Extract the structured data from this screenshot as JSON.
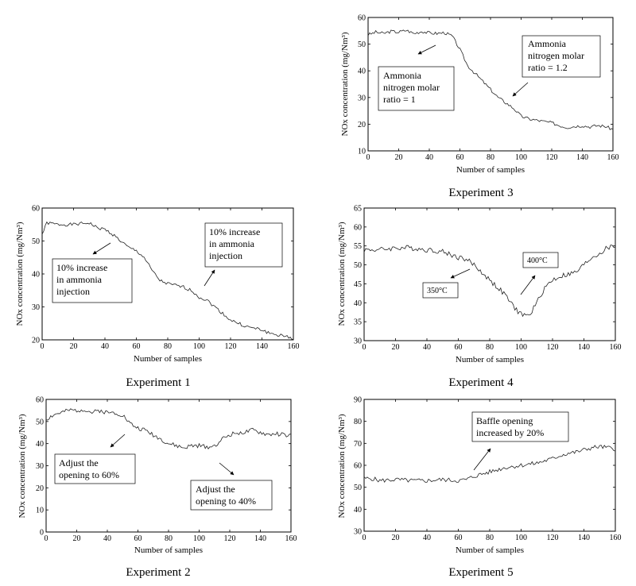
{
  "chart_data": [
    {
      "id": "exp3",
      "type": "line",
      "caption": "Experiment 3",
      "xlabel": "Number of samples",
      "ylabel": "NOx concentration (mg/Nm³)",
      "xlim": [
        0,
        160
      ],
      "ylim": [
        10,
        60
      ],
      "xticks": [
        0,
        20,
        40,
        60,
        80,
        100,
        120,
        140,
        160
      ],
      "yticks": [
        10,
        20,
        30,
        40,
        50,
        60
      ],
      "anchors": [
        [
          0,
          53.5
        ],
        [
          5,
          54.5
        ],
        [
          10,
          54
        ],
        [
          15,
          54.8
        ],
        [
          20,
          54.5
        ],
        [
          25,
          55.2
        ],
        [
          30,
          54
        ],
        [
          35,
          54.8
        ],
        [
          40,
          54.2
        ],
        [
          45,
          54
        ],
        [
          50,
          54.3
        ],
        [
          55,
          53
        ],
        [
          60,
          48
        ],
        [
          65,
          42
        ],
        [
          70,
          39
        ],
        [
          75,
          36
        ],
        [
          80,
          33
        ],
        [
          85,
          30
        ],
        [
          90,
          28
        ],
        [
          95,
          26
        ],
        [
          100,
          23
        ],
        [
          105,
          22
        ],
        [
          110,
          21.5
        ],
        [
          115,
          21
        ],
        [
          120,
          20.5
        ],
        [
          125,
          19.5
        ],
        [
          130,
          18.8
        ],
        [
          135,
          19.2
        ],
        [
          140,
          19.5
        ],
        [
          145,
          19
        ],
        [
          150,
          19.5
        ],
        [
          155,
          19.2
        ],
        [
          160,
          18
        ]
      ],
      "noise": 0.6,
      "seed": 3,
      "annotations": [
        {
          "lines": [
            "Ammonia",
            "nitrogen molar",
            "ratio = 1"
          ]
        },
        {
          "lines": [
            "Ammonia",
            "nitrogen molar",
            "ratio = 1.2"
          ]
        }
      ]
    },
    {
      "id": "exp1",
      "type": "line",
      "caption": "Experiment 1",
      "xlabel": "Number of samples",
      "ylabel": "NOx concentration (mg/Nm³)",
      "xlim": [
        0,
        160
      ],
      "ylim": [
        20,
        60
      ],
      "xticks": [
        0,
        20,
        40,
        60,
        80,
        100,
        120,
        140,
        160
      ],
      "yticks": [
        20,
        30,
        40,
        50,
        60
      ],
      "anchors": [
        [
          0,
          52
        ],
        [
          3,
          55.5
        ],
        [
          10,
          55
        ],
        [
          20,
          55
        ],
        [
          30,
          55.5
        ],
        [
          35,
          54
        ],
        [
          40,
          53.5
        ],
        [
          45,
          52
        ],
        [
          50,
          50
        ],
        [
          55,
          48
        ],
        [
          60,
          47
        ],
        [
          65,
          45
        ],
        [
          70,
          41
        ],
        [
          75,
          38
        ],
        [
          80,
          37
        ],
        [
          85,
          36.5
        ],
        [
          90,
          36
        ],
        [
          95,
          35
        ],
        [
          100,
          33
        ],
        [
          105,
          32
        ],
        [
          110,
          30
        ],
        [
          115,
          28
        ],
        [
          120,
          26
        ],
        [
          125,
          25
        ],
        [
          130,
          24
        ],
        [
          135,
          23.5
        ],
        [
          140,
          23
        ],
        [
          145,
          22
        ],
        [
          150,
          21.5
        ],
        [
          155,
          21
        ],
        [
          160,
          20.5
        ]
      ],
      "noise": 0.5,
      "seed": 1,
      "annotations": [
        {
          "lines": [
            "10% increase",
            "in ammonia",
            "injection"
          ]
        },
        {
          "lines": [
            "10% increase",
            "in ammonia",
            "injection"
          ]
        }
      ]
    },
    {
      "id": "exp4",
      "type": "line",
      "caption": "Experiment 4",
      "xlabel": "Number of samples",
      "ylabel": "NOx concentration (mg/Nm³)",
      "xlim": [
        0,
        160
      ],
      "ylim": [
        30,
        65
      ],
      "xticks": [
        0,
        20,
        40,
        60,
        80,
        100,
        120,
        140,
        160
      ],
      "yticks": [
        30,
        35,
        40,
        45,
        50,
        55,
        60,
        65
      ],
      "anchors": [
        [
          0,
          54
        ],
        [
          10,
          54
        ],
        [
          20,
          54.5
        ],
        [
          30,
          54.5
        ],
        [
          40,
          54
        ],
        [
          50,
          53.5
        ],
        [
          60,
          52
        ],
        [
          65,
          51.5
        ],
        [
          70,
          50
        ],
        [
          75,
          48
        ],
        [
          80,
          46
        ],
        [
          85,
          44
        ],
        [
          90,
          42
        ],
        [
          95,
          39
        ],
        [
          100,
          37
        ],
        [
          105,
          36.5
        ],
        [
          110,
          40
        ],
        [
          115,
          44
        ],
        [
          120,
          46
        ],
        [
          125,
          47
        ],
        [
          130,
          47.5
        ],
        [
          135,
          48
        ],
        [
          140,
          50
        ],
        [
          145,
          52
        ],
        [
          150,
          53
        ],
        [
          155,
          54.5
        ],
        [
          160,
          55
        ]
      ],
      "noise": 0.7,
      "seed": 4,
      "annotations": [
        {
          "lines": [
            "350°C"
          ]
        },
        {
          "lines": [
            "400°C"
          ]
        }
      ]
    },
    {
      "id": "exp2",
      "type": "line",
      "caption": "Experiment 2",
      "xlabel": "Number of samples",
      "ylabel": "NOx concentration (mg/Nm³)",
      "xlim": [
        0,
        160
      ],
      "ylim": [
        0,
        60
      ],
      "xticks": [
        0,
        20,
        40,
        60,
        80,
        100,
        120,
        140,
        160
      ],
      "yticks": [
        0,
        10,
        20,
        30,
        40,
        50,
        60
      ],
      "anchors": [
        [
          0,
          51
        ],
        [
          5,
          53
        ],
        [
          10,
          54
        ],
        [
          15,
          55
        ],
        [
          20,
          55
        ],
        [
          25,
          55.5
        ],
        [
          30,
          54
        ],
        [
          35,
          55
        ],
        [
          40,
          54
        ],
        [
          45,
          54
        ],
        [
          50,
          53
        ],
        [
          55,
          49
        ],
        [
          60,
          47
        ],
        [
          65,
          46
        ],
        [
          70,
          44
        ],
        [
          75,
          42
        ],
        [
          80,
          40
        ],
        [
          85,
          39
        ],
        [
          90,
          38
        ],
        [
          95,
          39
        ],
        [
          100,
          39
        ],
        [
          105,
          38.5
        ],
        [
          110,
          39
        ],
        [
          115,
          42
        ],
        [
          120,
          44
        ],
        [
          125,
          45
        ],
        [
          130,
          45
        ],
        [
          135,
          46
        ],
        [
          140,
          45
        ],
        [
          145,
          44
        ],
        [
          150,
          44.5
        ],
        [
          155,
          44
        ],
        [
          160,
          43.5
        ]
      ],
      "noise": 1.0,
      "seed": 2,
      "annotations": [
        {
          "lines": [
            "Adjust the",
            "opening to 60%"
          ]
        },
        {
          "lines": [
            "Adjust the",
            "opening to 40%"
          ]
        }
      ]
    },
    {
      "id": "exp5",
      "type": "line",
      "caption": "Experiment 5",
      "xlabel": "Number of samples",
      "ylabel": "NOx concentration (mg/Nm³)",
      "xlim": [
        0,
        160
      ],
      "ylim": [
        30,
        90
      ],
      "xticks": [
        0,
        20,
        40,
        60,
        80,
        100,
        120,
        140,
        160
      ],
      "yticks": [
        30,
        40,
        50,
        60,
        70,
        80,
        90
      ],
      "anchors": [
        [
          0,
          54
        ],
        [
          5,
          54
        ],
        [
          10,
          53
        ],
        [
          20,
          53.5
        ],
        [
          30,
          53
        ],
        [
          40,
          53
        ],
        [
          50,
          53.5
        ],
        [
          60,
          53
        ],
        [
          65,
          53.5
        ],
        [
          70,
          55
        ],
        [
          75,
          56
        ],
        [
          80,
          57
        ],
        [
          85,
          58
        ],
        [
          90,
          59
        ],
        [
          95,
          59.5
        ],
        [
          100,
          60
        ],
        [
          105,
          60.5
        ],
        [
          110,
          61
        ],
        [
          115,
          62
        ],
        [
          120,
          63
        ],
        [
          125,
          64.5
        ],
        [
          130,
          65.5
        ],
        [
          135,
          66
        ],
        [
          140,
          67
        ],
        [
          145,
          68
        ],
        [
          150,
          68.5
        ],
        [
          155,
          68
        ],
        [
          160,
          67.5
        ]
      ],
      "noise": 1.0,
      "seed": 5,
      "annotations": [
        {
          "lines": [
            "Baffle opening",
            "increased by 20%"
          ]
        }
      ]
    }
  ]
}
